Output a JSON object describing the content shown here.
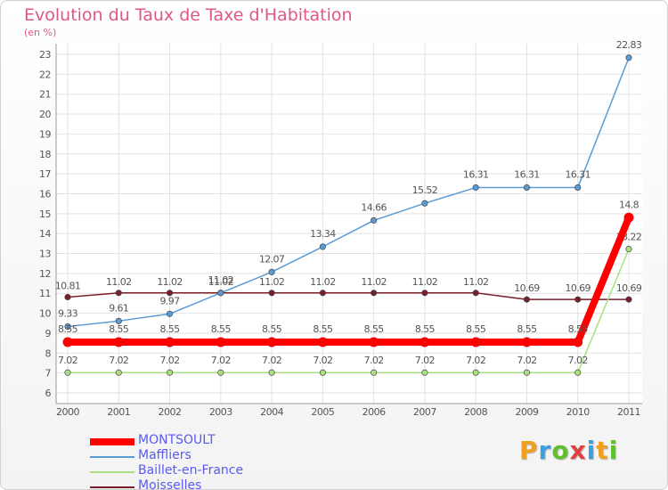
{
  "title": "Evolution du Taux de Taxe d'Habitation",
  "unit_label": "(en %)",
  "brand": {
    "letters": [
      "P",
      "r",
      "o",
      "x",
      "i",
      "t",
      "i"
    ],
    "colors": [
      "#f0a020",
      "#3aa0e0",
      "#60c030",
      "#e04040",
      "#3aa0e0",
      "#f0a020",
      "#60c030"
    ]
  },
  "chart_data": {
    "type": "line",
    "x": [
      "2000",
      "2001",
      "2002",
      "2003",
      "2004",
      "2005",
      "2006",
      "2007",
      "2008",
      "2009",
      "2010",
      "2011"
    ],
    "ylim": [
      6,
      23
    ],
    "yticks": [
      6,
      7,
      8,
      9,
      10,
      11,
      12,
      13,
      14,
      15,
      16,
      17,
      18,
      19,
      20,
      21,
      22,
      23
    ],
    "grid": true,
    "legend_position": "bottom-left",
    "series": [
      {
        "name": "Moisselles",
        "color": "#7a1f2a",
        "values": [
          10.81,
          11.02,
          11.02,
          11.02,
          11.02,
          11.02,
          11.02,
          11.02,
          11.02,
          10.69,
          10.69,
          10.69
        ],
        "labels": [
          "10.81",
          "11.02",
          "11.02",
          "11.02",
          "11.02",
          "11.02",
          "11.02",
          "11.02",
          "11.02",
          "10.69",
          "10.69",
          "10.69"
        ]
      },
      {
        "name": "Baillet-en-France",
        "color": "#a8e080",
        "values": [
          7.02,
          7.02,
          7.02,
          7.02,
          7.02,
          7.02,
          7.02,
          7.02,
          7.02,
          7.02,
          7.02,
          13.22
        ],
        "labels": [
          "7.02",
          "7.02",
          "7.02",
          "7.02",
          "7.02",
          "7.02",
          "7.02",
          "7.02",
          "7.02",
          "7.02",
          "7.02",
          "13.22"
        ]
      },
      {
        "name": "Maffliers",
        "color": "#5a9bd5",
        "values": [
          9.33,
          9.61,
          9.97,
          11.02,
          12.07,
          13.34,
          14.66,
          15.52,
          16.31,
          16.31,
          16.31,
          22.83
        ],
        "labels": [
          "9.33",
          "9.61",
          "9.97",
          "11.02",
          "12.07",
          "13.34",
          "14.66",
          "15.52",
          "16.31",
          "16.31",
          "16.31",
          "22.83"
        ]
      },
      {
        "name": "MONTSOULT",
        "color": "#ff0000",
        "values": [
          8.55,
          8.55,
          8.55,
          8.55,
          8.55,
          8.55,
          8.55,
          8.55,
          8.55,
          8.55,
          8.55,
          14.8
        ],
        "labels": [
          "8.55",
          "8.55",
          "8.55",
          "8.55",
          "8.55",
          "8.55",
          "8.55",
          "8.55",
          "8.55",
          "8.55",
          "8.55",
          "14.8"
        ]
      }
    ],
    "legend": [
      "MONTSOULT",
      "Maffliers",
      "Baillet-en-France",
      "Moisselles"
    ]
  }
}
